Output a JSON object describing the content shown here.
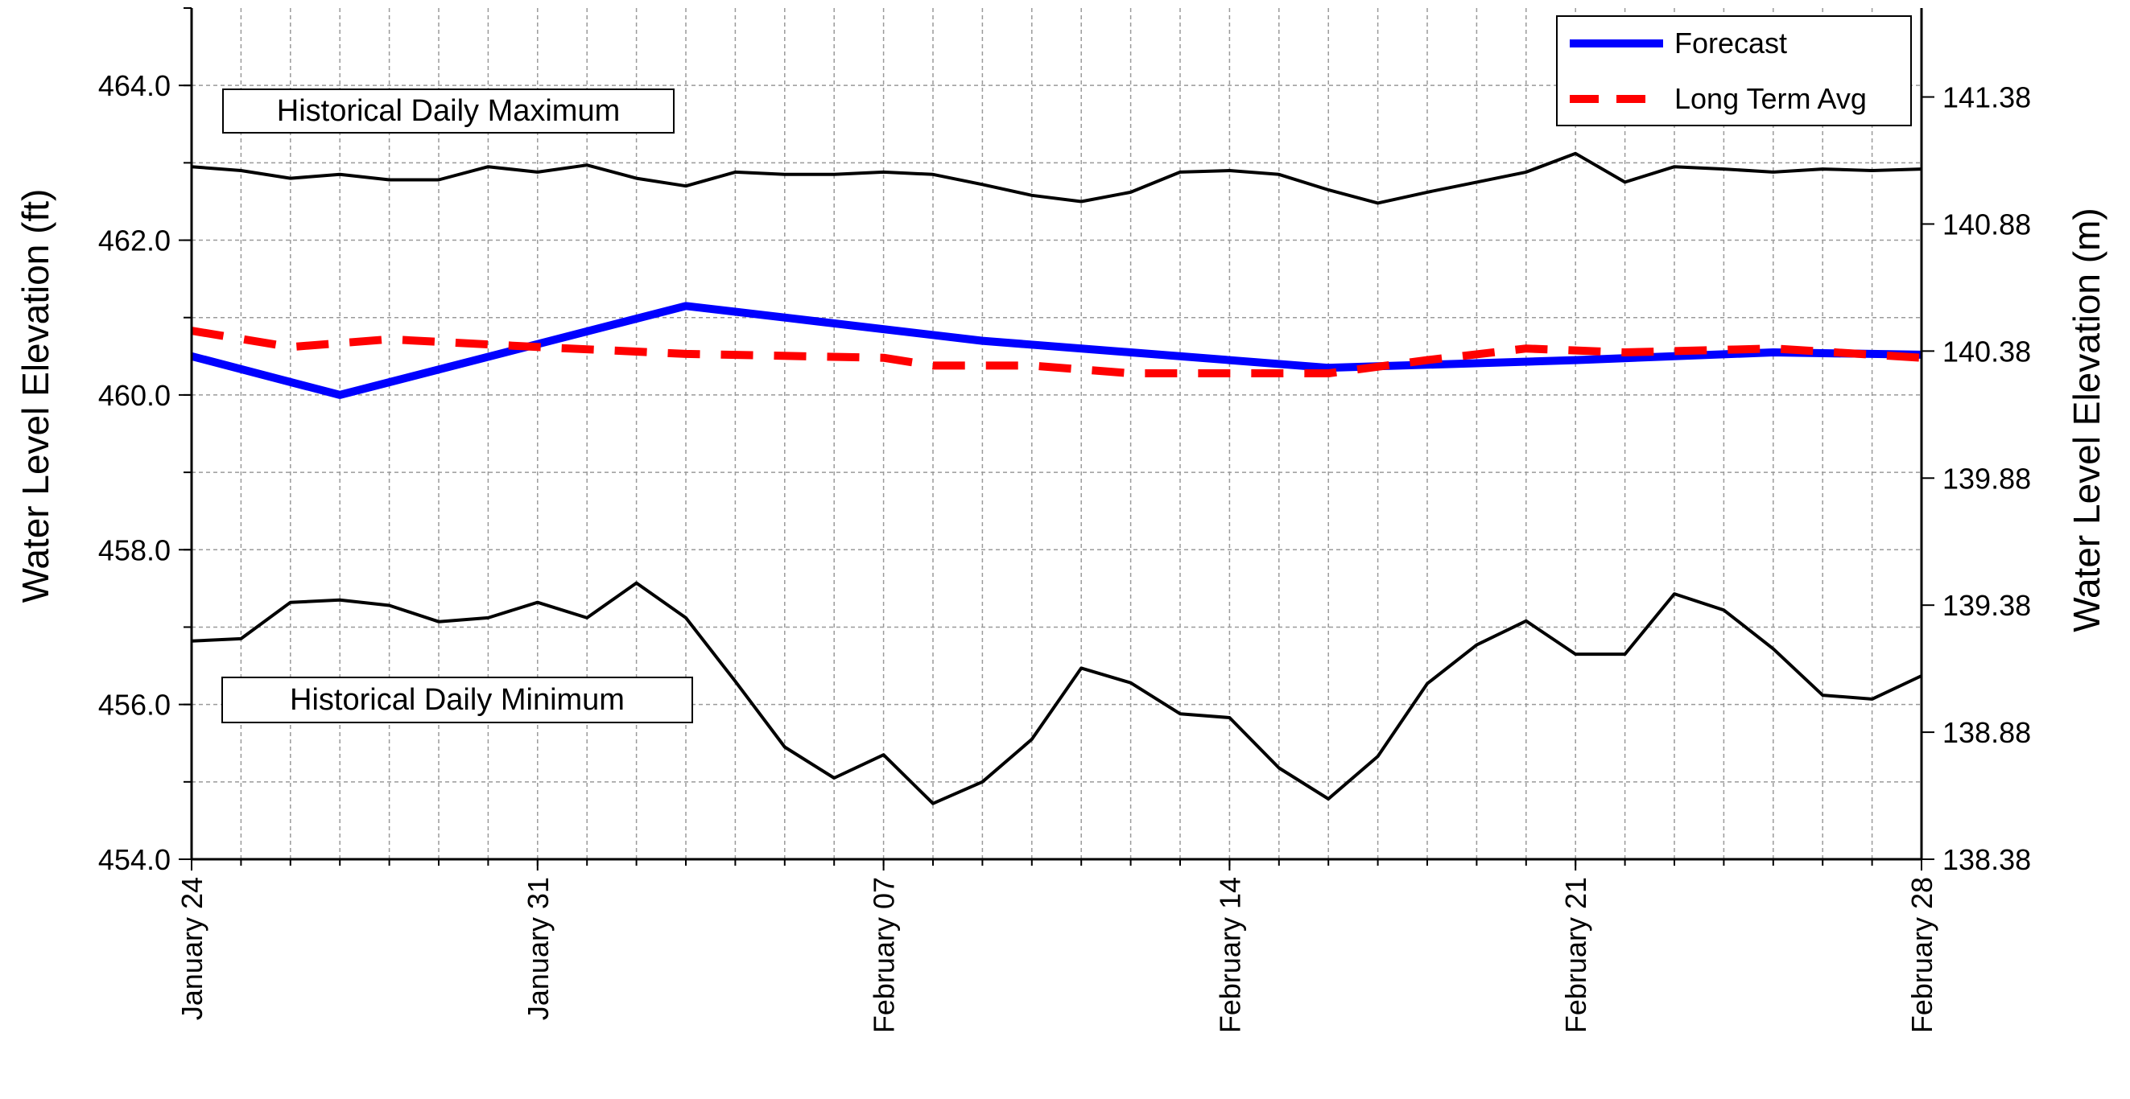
{
  "chart_data": {
    "type": "line",
    "title": "",
    "ylabel": "Water Level Elevation (ft)",
    "ylabel_right": "Water Level Elevation (m)",
    "ylim": [
      454.0,
      465.0
    ],
    "yticks": [
      454.0,
      456.0,
      458.0,
      460.0,
      462.0,
      464.0
    ],
    "ytick_labels": [
      "454.0",
      "456.0",
      "458.0",
      "460.0",
      "462.0",
      "464.0"
    ],
    "ylim_right": [
      138.38,
      141.73
    ],
    "yticks_right": [
      138.38,
      138.88,
      139.38,
      139.88,
      140.38,
      140.88,
      141.38
    ],
    "ytick_labels_right": [
      "138.38",
      "138.88",
      "139.38",
      "139.88",
      "140.38",
      "140.88",
      "141.38"
    ],
    "x_dates": [
      "Jan 24",
      "Jan 25",
      "Jan 26",
      "Jan 27",
      "Jan 28",
      "Jan 29",
      "Jan 30",
      "Jan 31",
      "Feb 01",
      "Feb 02",
      "Feb 03",
      "Feb 04",
      "Feb 05",
      "Feb 06",
      "Feb 07",
      "Feb 08",
      "Feb 09",
      "Feb 10",
      "Feb 11",
      "Feb 12",
      "Feb 13",
      "Feb 14",
      "Feb 15",
      "Feb 16",
      "Feb 17",
      "Feb 18",
      "Feb 19",
      "Feb 20",
      "Feb 21",
      "Feb 22",
      "Feb 23",
      "Feb 24",
      "Feb 25",
      "Feb 26",
      "Feb 27",
      "Feb 28"
    ],
    "xtick_labels": [
      {
        "date": "Jan 24",
        "label": "January 24"
      },
      {
        "date": "Jan 31",
        "label": "January 31"
      },
      {
        "date": "Feb 07",
        "label": "February 07"
      },
      {
        "date": "Feb 14",
        "label": "February 14"
      },
      {
        "date": "Feb 21",
        "label": "February 21"
      },
      {
        "date": "Feb 28",
        "label": "February 28"
      }
    ],
    "grid": true,
    "legend_position": "top-right",
    "series": [
      {
        "name": "Forecast",
        "color": "#0000ff",
        "style": "solid",
        "role": "forecast",
        "points": [
          [
            "Jan 24",
            460.5
          ],
          [
            "Jan 27",
            460.0
          ],
          [
            "Feb 03",
            461.15
          ],
          [
            "Feb 05",
            461.0
          ],
          [
            "Feb 09",
            460.7
          ],
          [
            "Feb 12",
            460.55
          ],
          [
            "Feb 16",
            460.35
          ],
          [
            "Feb 21",
            460.45
          ],
          [
            "Feb 25",
            460.55
          ],
          [
            "Feb 28",
            460.52
          ]
        ]
      },
      {
        "name": "Long Term Avg",
        "color": "#ff0000",
        "style": "dashed",
        "role": "average",
        "points": [
          [
            "Jan 24",
            460.83
          ],
          [
            "Jan 26",
            460.62
          ],
          [
            "Jan 28",
            460.72
          ],
          [
            "Jan 31",
            460.62
          ],
          [
            "Feb 03",
            460.53
          ],
          [
            "Feb 07",
            460.48
          ],
          [
            "Feb 08",
            460.38
          ],
          [
            "Feb 10",
            460.38
          ],
          [
            "Feb 12",
            460.28
          ],
          [
            "Feb 16",
            460.28
          ],
          [
            "Feb 18",
            460.45
          ],
          [
            "Feb 20",
            460.6
          ],
          [
            "Feb 22",
            460.55
          ],
          [
            "Feb 25",
            460.6
          ],
          [
            "Feb 28",
            460.48
          ]
        ]
      },
      {
        "label": "Historical Daily Maximum",
        "color": "#000000",
        "style": "solid",
        "role": "max",
        "values": [
          462.95,
          462.9,
          462.8,
          462.85,
          462.78,
          462.78,
          462.95,
          462.88,
          462.97,
          462.8,
          462.7,
          462.88,
          462.85,
          462.85,
          462.88,
          462.85,
          462.72,
          462.58,
          462.5,
          462.62,
          462.88,
          462.9,
          462.85,
          462.65,
          462.48,
          462.62,
          462.75,
          462.88,
          463.12,
          462.75,
          462.95,
          462.92,
          462.88,
          462.92,
          462.9,
          462.92
        ]
      },
      {
        "label": "Historical Daily Minimum",
        "color": "#000000",
        "style": "solid",
        "role": "min",
        "values": [
          456.82,
          456.85,
          457.32,
          457.35,
          457.28,
          457.07,
          457.12,
          457.32,
          457.12,
          457.57,
          457.12,
          456.3,
          455.45,
          455.05,
          455.35,
          454.72,
          455.0,
          455.55,
          456.47,
          456.28,
          455.88,
          455.83,
          455.18,
          454.78,
          455.33,
          456.27,
          456.77,
          457.08,
          456.65,
          456.65,
          457.43,
          457.22,
          456.72,
          456.12,
          456.07,
          456.37
        ]
      }
    ],
    "annotations": [
      "Historical Daily Maximum",
      "Historical Daily Minimum"
    ]
  }
}
